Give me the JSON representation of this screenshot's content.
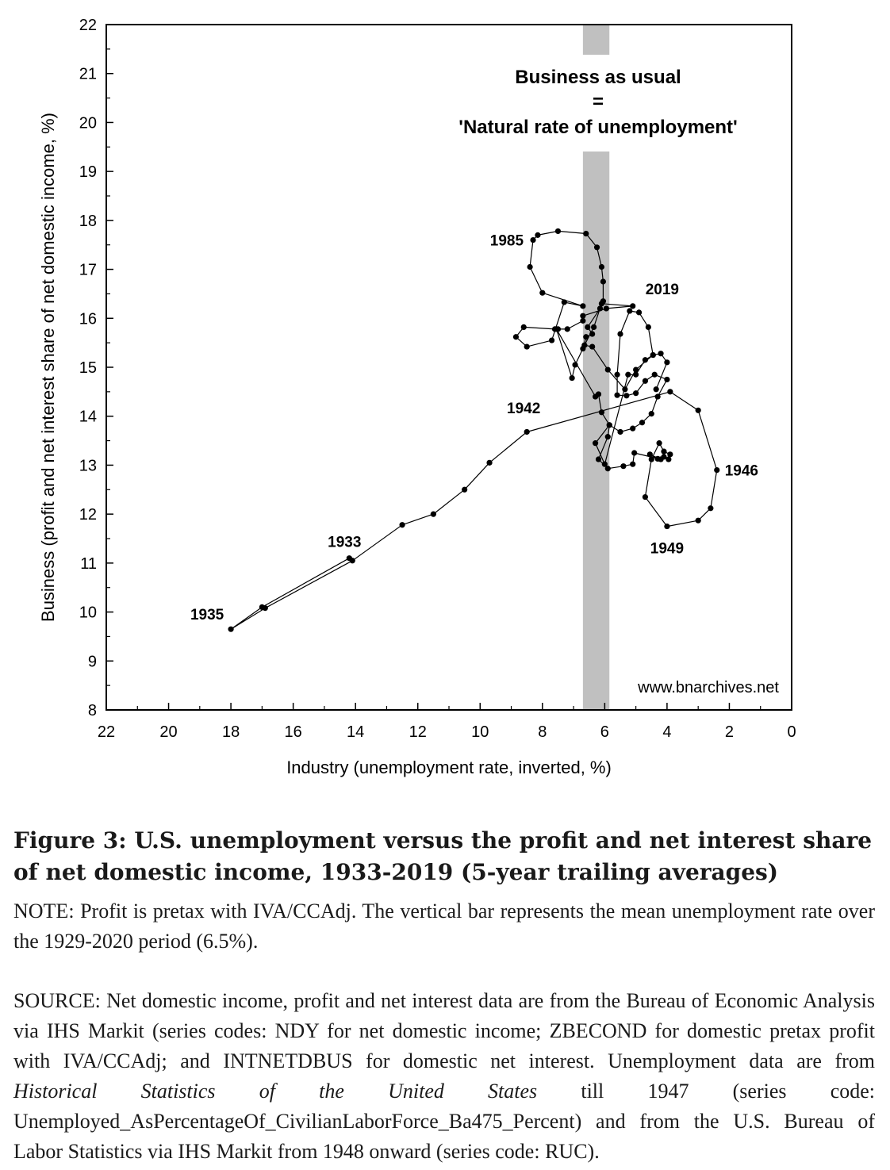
{
  "chart_data": {
    "type": "scatter",
    "xlabel": "Industry (unemployment rate, inverted, %)",
    "ylabel": "Business (profit and net interest share of net domestic income, %)",
    "xlim": [
      22,
      0
    ],
    "ylim": [
      8,
      22
    ],
    "x_ticks": [
      "22",
      "20",
      "18",
      "16",
      "14",
      "12",
      "10",
      "8",
      "6",
      "4",
      "2",
      "0"
    ],
    "y_ticks": [
      "8",
      "9",
      "10",
      "11",
      "12",
      "13",
      "14",
      "15",
      "16",
      "17",
      "18",
      "19",
      "20",
      "21",
      "22"
    ],
    "x_inverted": true,
    "grid": false,
    "vertical_band": {
      "x_from": 6.7,
      "x_to": 5.85,
      "color": "#c0c0c0",
      "mean_value": 6.5
    },
    "band_annotation": [
      "Business as usual",
      "=",
      "'Natural rate of unemployment'"
    ],
    "watermark": "www.bnarchives.net",
    "point_labels": [
      {
        "text": "1935",
        "x": 18.0,
        "y": 9.65
      },
      {
        "text": "1933",
        "x": 14.2,
        "y": 11.1
      },
      {
        "text": "1942",
        "x": 8.5,
        "y": 13.7
      },
      {
        "text": "1946",
        "x": 2.4,
        "y": 12.9
      },
      {
        "text": "1949",
        "x": 4.0,
        "y": 11.75
      },
      {
        "text": "1985",
        "x": 8.3,
        "y": 17.6
      },
      {
        "text": "2019",
        "x": 5.1,
        "y": 16.25
      }
    ],
    "series": [
      {
        "points": [
          [
            14.2,
            11.1
          ],
          [
            17.0,
            10.1
          ],
          [
            18.0,
            9.65
          ],
          [
            16.9,
            10.08
          ],
          [
            14.1,
            11.05
          ],
          [
            12.5,
            11.78
          ],
          [
            11.5,
            12.0
          ],
          [
            10.5,
            12.5
          ],
          [
            9.7,
            13.05
          ],
          [
            8.5,
            13.68
          ],
          [
            3.9,
            14.5
          ],
          [
            3.0,
            14.12
          ],
          [
            2.4,
            12.9
          ],
          [
            2.6,
            12.12
          ],
          [
            3.0,
            11.87
          ],
          [
            4.0,
            11.75
          ],
          [
            4.7,
            12.35
          ],
          [
            4.5,
            13.12
          ],
          [
            4.25,
            13.45
          ],
          [
            4.1,
            13.28
          ],
          [
            3.9,
            13.22
          ],
          [
            3.95,
            13.12
          ],
          [
            4.1,
            13.17
          ],
          [
            4.3,
            13.13
          ],
          [
            4.55,
            13.22
          ],
          [
            4.2,
            13.12
          ],
          [
            5.05,
            13.25
          ],
          [
            5.1,
            13.02
          ],
          [
            5.4,
            12.98
          ],
          [
            5.9,
            12.93
          ],
          [
            6.2,
            13.12
          ],
          [
            5.9,
            13.58
          ],
          [
            5.85,
            13.82
          ],
          [
            5.5,
            13.68
          ],
          [
            5.1,
            13.75
          ],
          [
            4.8,
            13.87
          ],
          [
            4.5,
            14.05
          ],
          [
            4.3,
            14.4
          ],
          [
            4.0,
            14.75
          ],
          [
            4.4,
            14.85
          ],
          [
            4.7,
            14.72
          ],
          [
            5.0,
            14.47
          ],
          [
            5.3,
            14.42
          ],
          [
            5.6,
            14.43
          ],
          [
            5.6,
            14.85
          ],
          [
            5.5,
            15.68
          ],
          [
            5.2,
            16.15
          ],
          [
            4.9,
            16.12
          ],
          [
            4.6,
            15.82
          ],
          [
            4.45,
            15.25
          ],
          [
            5.0,
            14.95
          ],
          [
            5.35,
            14.55
          ],
          [
            5.9,
            14.95
          ],
          [
            6.4,
            15.42
          ],
          [
            6.65,
            15.45
          ],
          [
            6.35,
            15.82
          ],
          [
            6.1,
            16.3
          ],
          [
            5.1,
            16.25
          ],
          [
            5.95,
            16.2
          ],
          [
            6.7,
            16.05
          ],
          [
            6.7,
            15.95
          ],
          [
            7.2,
            15.78
          ],
          [
            7.5,
            15.78
          ],
          [
            7.6,
            15.78
          ],
          [
            8.6,
            15.82
          ],
          [
            8.85,
            15.62
          ],
          [
            8.5,
            15.42
          ],
          [
            7.7,
            15.55
          ],
          [
            7.3,
            16.33
          ],
          [
            6.7,
            16.25
          ],
          [
            8.0,
            16.52
          ],
          [
            8.4,
            17.05
          ],
          [
            8.3,
            17.6
          ],
          [
            8.15,
            17.7
          ],
          [
            7.5,
            17.78
          ],
          [
            6.6,
            17.73
          ],
          [
            6.25,
            17.45
          ],
          [
            6.1,
            17.05
          ],
          [
            6.05,
            16.75
          ],
          [
            6.05,
            16.35
          ],
          [
            6.15,
            16.2
          ],
          [
            6.55,
            15.82
          ],
          [
            6.4,
            15.68
          ],
          [
            6.6,
            15.62
          ],
          [
            6.7,
            15.38
          ],
          [
            6.95,
            15.05
          ],
          [
            7.05,
            14.78
          ],
          [
            7.55,
            15.78
          ],
          [
            6.3,
            14.4
          ],
          [
            6.2,
            14.45
          ],
          [
            6.1,
            14.08
          ],
          [
            5.85,
            13.82
          ],
          [
            6.3,
            13.45
          ],
          [
            6.0,
            13.02
          ],
          [
            5.25,
            14.85
          ],
          [
            5.0,
            14.85
          ],
          [
            4.7,
            15.15
          ],
          [
            4.45,
            15.25
          ],
          [
            4.2,
            15.28
          ],
          [
            4.0,
            15.1
          ],
          [
            4.35,
            14.55
          ]
        ]
      }
    ]
  },
  "caption": {
    "title": "Figure 3: U.S. unemployment versus the profit and net interest share of net domestic income, 1933-2019 (5-year trailing averages)",
    "note": "NOTE: Profit is pretax with IVA/CCAdj. The vertical bar represents the mean unemployment rate over the 1929-2020 period (6.5%).",
    "source_part1": "SOURCE: Net domestic income, profit and net interest data are from the Bureau of Economic Analysis via IHS Markit (series codes: NDY for net domestic income; ZBECOND for domestic pretax profit with IVA/CCAdj; and INTNETDBUS for domestic net interest. Unemployment data are from ",
    "source_italic": "Historical Statistics of the United States",
    "source_part2": " till 1947 (series code: Unemployed_AsPercentageOf_CivilianLaborForce_Ba475_Percent) and from the U.S. Bureau of Labor Statistics via IHS Markit from 1948 onward (series code: RUC)."
  }
}
